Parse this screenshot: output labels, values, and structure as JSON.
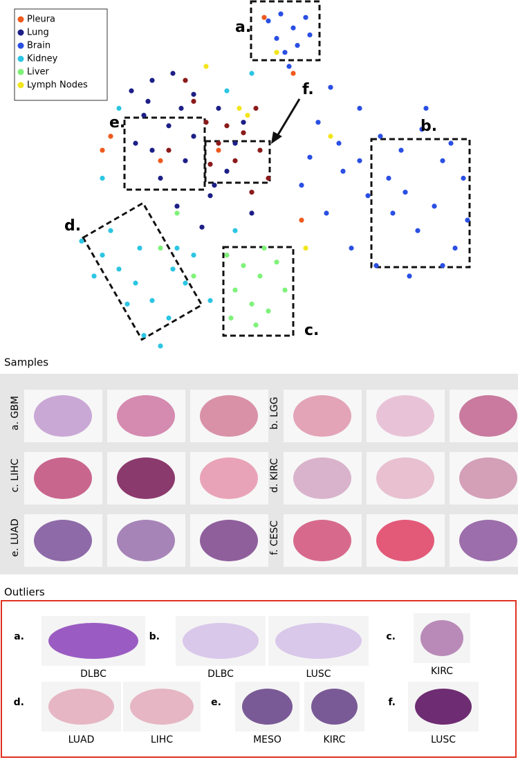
{
  "chart_data": {
    "type": "scatter",
    "xlim": [
      0,
      100
    ],
    "ylim": [
      0,
      100
    ],
    "legend": "upper left",
    "series": [
      {
        "name": "Pleura",
        "color": "#ee5a1e",
        "x": [
          8,
          10,
          36,
          54,
          47,
          22,
          56
        ],
        "y": [
          58,
          62,
          58,
          80,
          96,
          55,
          38
        ]
      },
      {
        "name": "Lung",
        "color": "#1c1f86",
        "x": [
          15,
          20,
          25,
          30,
          18,
          24,
          30,
          36,
          40,
          28,
          22,
          34,
          38,
          26,
          44,
          20,
          32,
          16,
          42,
          27,
          35,
          19
        ],
        "y": [
          75,
          78,
          80,
          74,
          68,
          65,
          62,
          70,
          60,
          55,
          50,
          45,
          52,
          42,
          40,
          58,
          36,
          60,
          66,
          70,
          48,
          72
        ]
      },
      {
        "name": "Brain",
        "color": "#2a4fe3",
        "x": [
          48,
          51,
          54,
          57,
          50,
          55,
          52,
          58,
          53,
          60,
          65,
          70,
          75,
          80,
          85,
          90,
          95,
          72,
          78,
          84,
          88,
          93,
          68,
          62,
          56,
          74,
          82,
          90,
          96,
          66,
          86,
          63,
          70,
          58,
          77,
          92,
          81
        ],
        "y": [
          95,
          97,
          93,
          96,
          90,
          88,
          86,
          91,
          82,
          66,
          60,
          55,
          62,
          58,
          64,
          55,
          50,
          45,
          40,
          35,
          42,
          30,
          30,
          40,
          48,
          25,
          22,
          25,
          38,
          52,
          70,
          76,
          70,
          56,
          50,
          60,
          46
        ]
      },
      {
        "name": "Kidney",
        "color": "#2cc5e3",
        "x": [
          3,
          8,
          12,
          16,
          20,
          24,
          18,
          22,
          6,
          14,
          28,
          30,
          10,
          34,
          38,
          44,
          12,
          40,
          26,
          8,
          17,
          25
        ],
        "y": [
          32,
          28,
          24,
          20,
          15,
          10,
          5,
          2,
          22,
          14,
          20,
          28,
          35,
          15,
          75,
          80,
          70,
          35,
          30,
          50,
          30,
          24
        ]
      },
      {
        "name": "Liver",
        "color": "#7ff27a",
        "x": [
          38,
          42,
          46,
          50,
          40,
          44,
          48,
          52,
          39,
          47,
          26,
          22,
          30,
          45
        ],
        "y": [
          28,
          25,
          22,
          26,
          18,
          14,
          12,
          18,
          10,
          30,
          40,
          30,
          22,
          8
        ]
      },
      {
        "name": "Lymph Nodes",
        "color": "#f2e51c",
        "x": [
          50,
          41,
          43,
          63,
          57,
          33
        ],
        "y": [
          86,
          70,
          68,
          62,
          30,
          82
        ]
      },
      {
        "color": "#8b1a1a",
        "x": [
          30,
          33,
          38,
          42,
          36,
          45,
          40,
          34,
          46,
          28,
          48,
          24,
          44
        ],
        "y": [
          72,
          66,
          65,
          63,
          60,
          70,
          55,
          54,
          58,
          78,
          50,
          58,
          46
        ]
      }
    ],
    "region_labels": [
      "a.",
      "b.",
      "c.",
      "d.",
      "e.",
      "f."
    ]
  },
  "samples": {
    "title": "Samples",
    "groups": [
      "a. GBM",
      "b. LGG",
      "c. LIHC",
      "d. KIRC",
      "e. LUAD",
      "f. CESC"
    ]
  },
  "outliers": {
    "title": "Outliers",
    "items": [
      {
        "label": "a.",
        "captions": [
          "DLBC"
        ]
      },
      {
        "label": "b.",
        "captions": [
          "DLBC",
          "LUSC"
        ]
      },
      {
        "label": "c.",
        "captions": [
          "KIRC"
        ]
      },
      {
        "label": "d.",
        "captions": [
          "LUAD",
          "LIHC"
        ]
      },
      {
        "label": "e.",
        "captions": [
          "MESO",
          "KIRC"
        ]
      },
      {
        "label": "f.",
        "captions": [
          "LUSC"
        ]
      }
    ]
  }
}
